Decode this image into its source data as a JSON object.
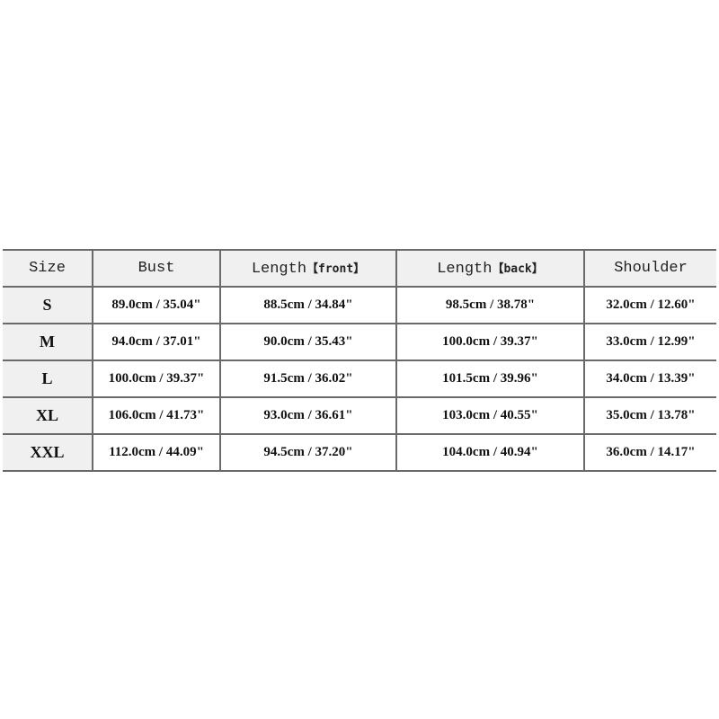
{
  "table": {
    "headers": [
      {
        "label": "Size",
        "suffix": ""
      },
      {
        "label": "Bust",
        "suffix": ""
      },
      {
        "label": "Length",
        "suffix": "【front】"
      },
      {
        "label": "Length",
        "suffix": "【back】"
      },
      {
        "label": "Shoulder",
        "suffix": ""
      }
    ],
    "rows": [
      [
        "S",
        "89.0cm / 35.04\"",
        "88.5cm / 34.84\"",
        "98.5cm / 38.78\"",
        "32.0cm / 12.60\""
      ],
      [
        "M",
        "94.0cm / 37.01\"",
        "90.0cm / 35.43\"",
        "100.0cm / 39.37\"",
        "33.0cm / 12.99\""
      ],
      [
        "L",
        "100.0cm / 39.37\"",
        "91.5cm / 36.02\"",
        "101.5cm / 39.96\"",
        "34.0cm / 13.39\""
      ],
      [
        "XL",
        "106.0cm / 41.73\"",
        "93.0cm / 36.61\"",
        "103.0cm / 40.55\"",
        "35.0cm / 13.78\""
      ],
      [
        "XXL",
        "112.0cm / 44.09\"",
        "94.5cm / 37.20\"",
        "104.0cm / 40.94\"",
        "36.0cm / 14.17\""
      ]
    ]
  }
}
